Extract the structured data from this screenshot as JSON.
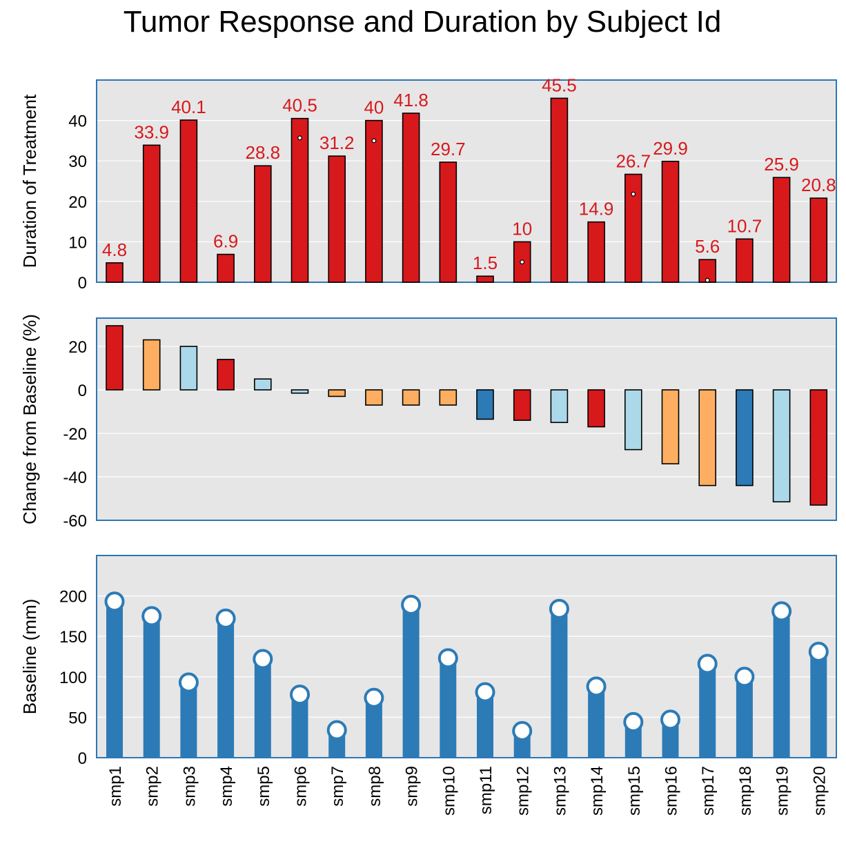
{
  "chart_data": {
    "type": "bar",
    "title": "Tumor Response and Duration by Subject Id",
    "categories": [
      "smp1",
      "smp2",
      "smp3",
      "smp4",
      "smp5",
      "smp6",
      "smp7",
      "smp8",
      "smp9",
      "smp10",
      "smp11",
      "smp12",
      "smp13",
      "smp14",
      "smp15",
      "smp16",
      "smp17",
      "smp18",
      "smp19",
      "smp20"
    ],
    "colors": {
      "red": "#d7191c",
      "orange": "#fdae61",
      "light_blue": "#abd9e9",
      "dark_blue": "#2c7bb6",
      "panel_bg": "#e6e6e6",
      "panel_border": "#2e75b6"
    },
    "panels": [
      {
        "type": "bar",
        "ylabel": "Duration of Treatment",
        "ylim": [
          0,
          50
        ],
        "yticks": [
          0,
          10,
          20,
          30,
          40
        ],
        "values": [
          4.8,
          33.9,
          40.1,
          6.9,
          28.8,
          40.5,
          31.2,
          40,
          41.8,
          29.7,
          1.5,
          10,
          45.5,
          14.9,
          26.7,
          29.9,
          5.6,
          10.7,
          25.9,
          20.8
        ],
        "data_labels": [
          "4.8",
          "33.9",
          "40.1",
          "6.9",
          "28.8",
          "40.5",
          "31.2",
          "40",
          "41.8",
          "29.7",
          "1.5",
          "10",
          "45.5",
          "14.9",
          "26.7",
          "29.9",
          "5.6",
          "10.7",
          "25.9",
          "20.8"
        ],
        "bar_color": "#d7191c",
        "markers": [
          {
            "category": "smp6",
            "value": 35.7
          },
          {
            "category": "smp8",
            "value": 35
          },
          {
            "category": "smp12",
            "value": 5
          },
          {
            "category": "smp15",
            "value": 21.8
          },
          {
            "category": "smp17",
            "value": 0.5
          }
        ]
      },
      {
        "type": "bar",
        "ylabel": "Change from Baseline (%)",
        "ylim": [
          -60,
          33
        ],
        "yticks": [
          -60,
          -40,
          -20,
          0,
          20
        ],
        "values": [
          29.5,
          23,
          20,
          14,
          5,
          -1.5,
          -3,
          -7,
          -7,
          -7,
          -13.5,
          -14,
          -15,
          -17,
          -27.5,
          -34,
          -44,
          -44,
          -51.5,
          -53
        ],
        "bar_colors": [
          "red",
          "orange",
          "light_blue",
          "red",
          "light_blue",
          "light_blue",
          "orange",
          "orange",
          "orange",
          "orange",
          "dark_blue",
          "red",
          "light_blue",
          "red",
          "light_blue",
          "orange",
          "orange",
          "dark_blue",
          "light_blue",
          "red"
        ]
      },
      {
        "type": "lollipop",
        "ylabel": "Baseline (mm)",
        "ylim": [
          0,
          250
        ],
        "yticks": [
          0,
          50,
          100,
          150,
          200
        ],
        "values": [
          193,
          175,
          93,
          172,
          122,
          78,
          34,
          74,
          189,
          123,
          81,
          33,
          184,
          88,
          44,
          47,
          116,
          100,
          181,
          131
        ],
        "bar_color": "#2c7bb6"
      }
    ]
  }
}
